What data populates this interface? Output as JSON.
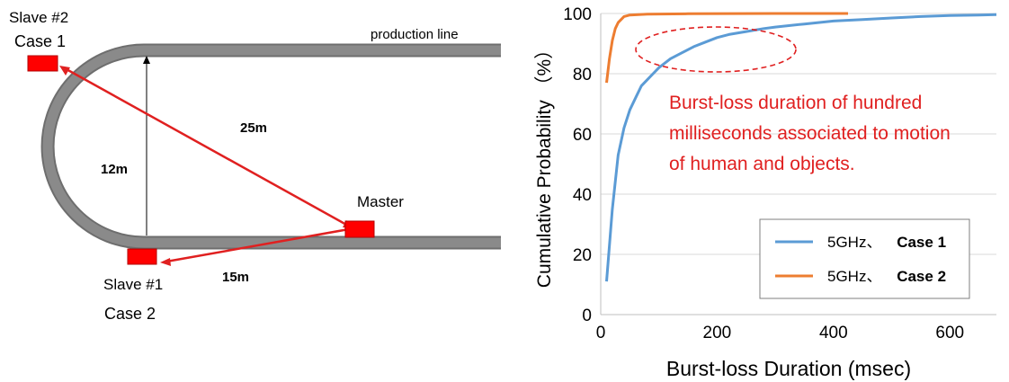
{
  "diagram": {
    "production_line_label": "production line",
    "slave2_label": "Slave #2",
    "case1_label": "Case 1",
    "slave1_label": "Slave #1",
    "case2_label": "Case 2",
    "master_label": "Master",
    "distance_25": "25m",
    "distance_12": "12m",
    "distance_15": "15m",
    "colors": {
      "track": "#8a8a8a",
      "node": "#ff0000",
      "link": "#e02020",
      "measure": "#000000"
    }
  },
  "annotation": {
    "lines": [
      "Burst-loss duration of hundred",
      "milliseconds associated to motion",
      "of human and objects."
    ],
    "color": "#e02020"
  },
  "chart_data": {
    "type": "line",
    "xlabel": "Burst-loss Duration (msec)",
    "ylabel": "Cumulative Probability （%）",
    "xlim": [
      0,
      680
    ],
    "ylim": [
      0,
      100
    ],
    "xticks": [
      0,
      200,
      400,
      600
    ],
    "yticks": [
      0,
      20,
      40,
      60,
      80,
      100
    ],
    "grid": "horizontal",
    "legend_position": "bottom-right",
    "series": [
      {
        "name_prefix": "5GHz、",
        "name_bold": "Case 1",
        "color": "#5b9bd5",
        "points": [
          [
            10,
            11
          ],
          [
            20,
            35
          ],
          [
            30,
            53
          ],
          [
            40,
            62
          ],
          [
            50,
            68
          ],
          [
            60,
            72
          ],
          [
            70,
            76
          ],
          [
            80,
            78
          ],
          [
            90,
            80
          ],
          [
            100,
            82
          ],
          [
            120,
            85
          ],
          [
            140,
            87
          ],
          [
            160,
            89
          ],
          [
            180,
            90.5
          ],
          [
            200,
            92
          ],
          [
            220,
            93
          ],
          [
            250,
            94
          ],
          [
            280,
            95
          ],
          [
            300,
            95.5
          ],
          [
            350,
            96.5
          ],
          [
            400,
            97.5
          ],
          [
            450,
            98
          ],
          [
            500,
            98.5
          ],
          [
            550,
            99
          ],
          [
            600,
            99.3
          ],
          [
            650,
            99.5
          ],
          [
            680,
            99.6
          ]
        ]
      },
      {
        "name_prefix": "5GHz、",
        "name_bold": "Case 2",
        "color": "#ed7d31",
        "points": [
          [
            10,
            77
          ],
          [
            15,
            85
          ],
          [
            20,
            91
          ],
          [
            25,
            95
          ],
          [
            30,
            97
          ],
          [
            40,
            99
          ],
          [
            50,
            99.5
          ],
          [
            80,
            99.8
          ],
          [
            150,
            99.9
          ],
          [
            300,
            100
          ],
          [
            425,
            100
          ]
        ]
      }
    ]
  }
}
